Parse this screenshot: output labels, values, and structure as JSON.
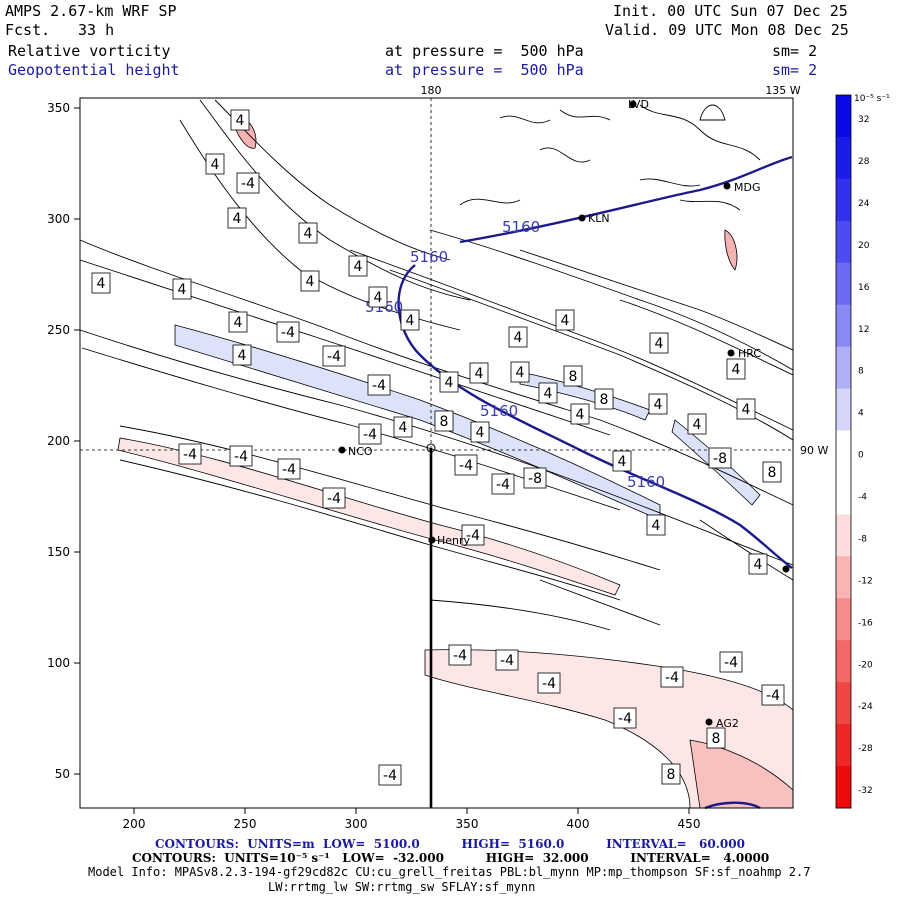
{
  "header": {
    "model": "AMPS 2.67-km WRF SP",
    "fcst_label": "Fcst.",
    "fcst_value": "33 h",
    "init": "Init. 00 UTC Sun 07 Dec 25",
    "valid": "Valid. 09 UTC Mon 08 Dec 25",
    "field1": "Relative vorticity",
    "field2": "Geopotential height",
    "pressure1": "at pressure =  500 hPa",
    "pressure2": "at pressure =  500 hPa",
    "sm1": "sm= 2",
    "sm2": "sm= 2"
  },
  "map_labels": {
    "lon_180": "180",
    "lon_135w": "135 W",
    "lon_90w": "90 W"
  },
  "axes": {
    "x_ticks": [
      "200",
      "250",
      "300",
      "350",
      "400",
      "450"
    ],
    "y_ticks": [
      "350",
      "300",
      "250",
      "200",
      "150",
      "100",
      "50"
    ]
  },
  "colorbar": {
    "unit": "10⁻⁵ s⁻¹",
    "labels": [
      "32",
      "28",
      "24",
      "20",
      "16",
      "12",
      "8",
      "4",
      "0",
      "-4",
      "-8",
      "-12",
      "-16",
      "-20",
      "-24",
      "-28",
      "-32"
    ],
    "colors_top_to_bottom": [
      "#0a0ae6",
      "#1c1cea",
      "#3232ee",
      "#4c4cf0",
      "#6a6af2",
      "#8a8af6",
      "#b0b0f8",
      "#d6d6fb",
      "#ffffff",
      "#ffffff",
      "#fcdcdc",
      "#f9b4b4",
      "#f68c8c",
      "#f36868",
      "#f04646",
      "#ee2828",
      "#ec0a0a"
    ]
  },
  "stations": [
    {
      "name": "LVD"
    },
    {
      "name": "KLN"
    },
    {
      "name": "MDG"
    },
    {
      "name": "HRC"
    },
    {
      "name": "NCO"
    },
    {
      "name": "Henry"
    },
    {
      "name": "AG2"
    }
  ],
  "height_labels": [
    "5160",
    "5160",
    "5160",
    "5160",
    "5160"
  ],
  "vort_labels": [
    "4",
    "4",
    "4",
    "4",
    "4",
    "4",
    "4",
    "4",
    "4",
    "4",
    "4",
    "4",
    "4",
    "4",
    "4",
    "4",
    "4",
    "4",
    "4",
    "4",
    "4",
    "4",
    "4",
    "4",
    "4",
    "4",
    "4",
    "4",
    "4",
    "-4",
    "-4",
    "-4",
    "-4",
    "-4",
    "-4",
    "-4",
    "-4",
    "-4",
    "-4",
    "-4",
    "-4",
    "-4",
    "-4",
    "-4",
    "-4",
    "-4",
    "-4",
    "-4",
    "-4",
    "8",
    "8",
    "8",
    "8",
    "8",
    "8",
    "-8",
    "-8"
  ],
  "footer": {
    "line1": "CONTOURS:  UNITS=m  LOW=  5100.0          HIGH=  5160.0          INTERVAL=   60.000",
    "line2": "CONTOURS:  UNITS=10⁻⁵ s⁻¹   LOW=  -32.000          HIGH=  32.000          INTERVAL=   4.0000",
    "line3": "Model Info: MPASv8.2.3-194-gf29cd82c CU:cu_grell_freitas PBL:bl_mynn MP:mp_thompson SF:sf_noahmp 2.7",
    "line4": "LW:rrtmg_lw SW:rrtmg_sw SFLAY:sf_mynn"
  }
}
